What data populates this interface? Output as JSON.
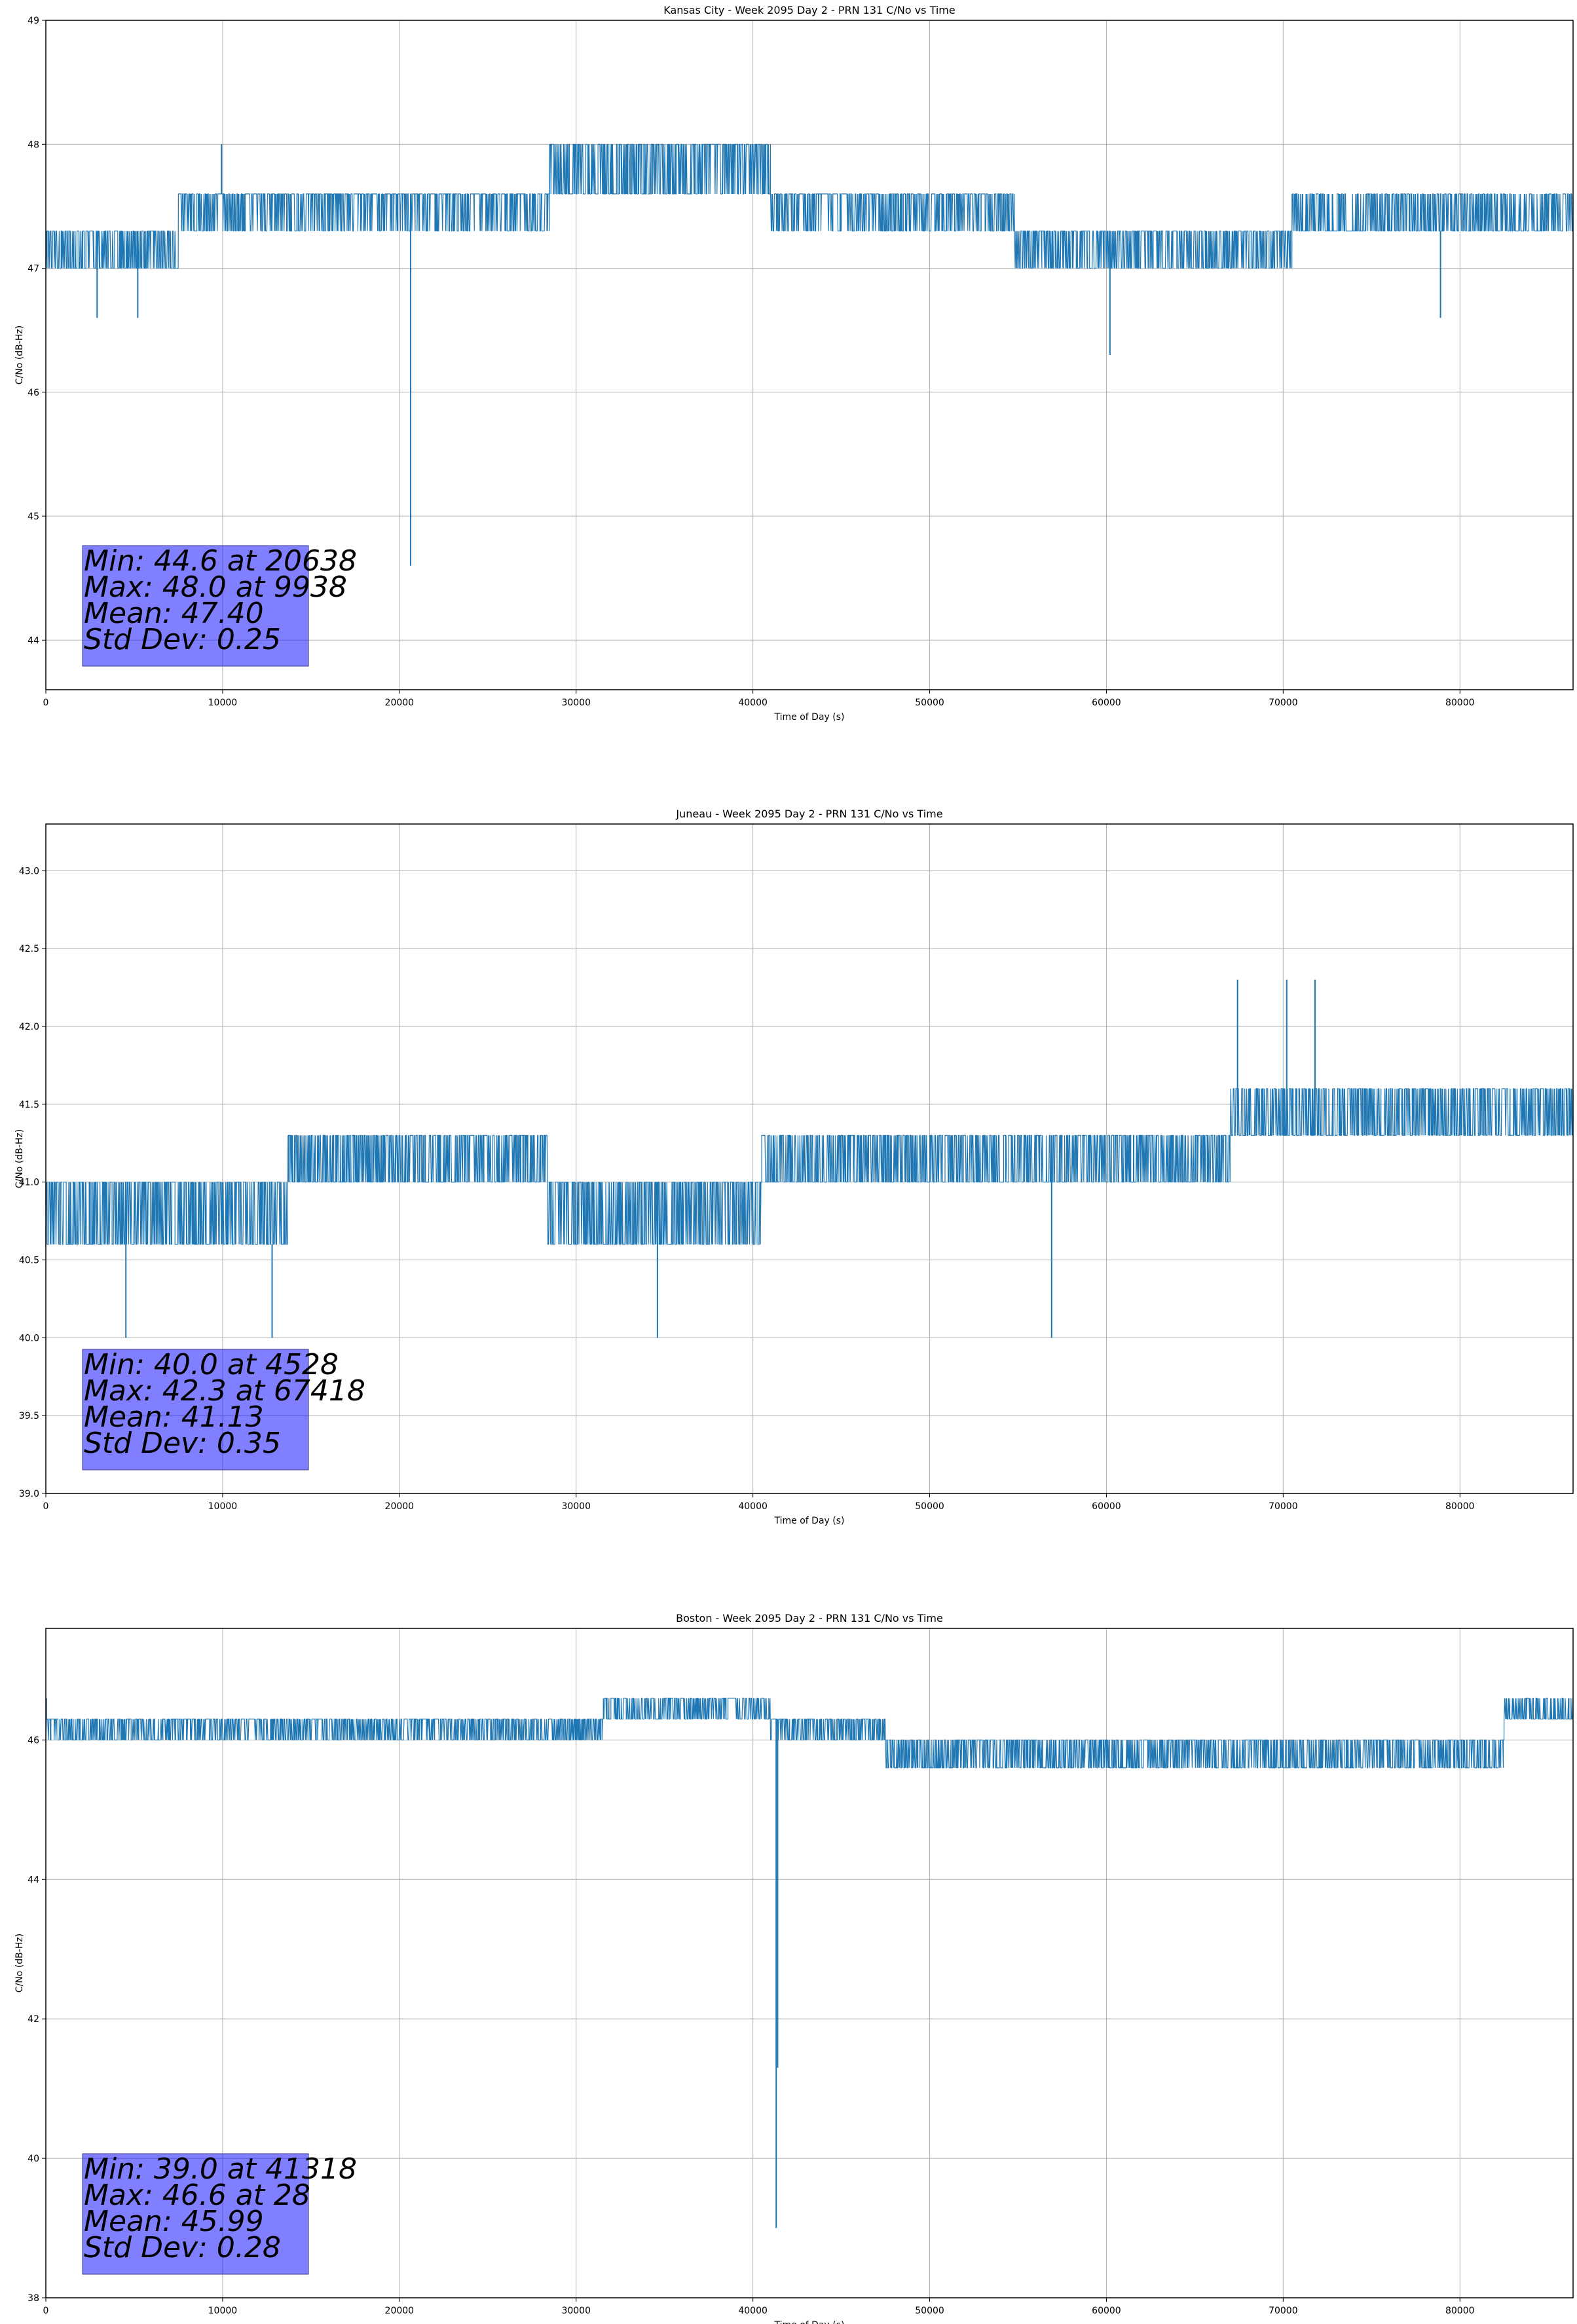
{
  "chart_data": [
    {
      "type": "line",
      "title": "Kansas City - Week 2095 Day 2 - PRN 131 C/No vs Time",
      "xlabel": "Time of Day (s)",
      "ylabel": "C/No (dB-Hz)",
      "xlim": [
        0,
        86400
      ],
      "ylim": [
        43.6,
        49.0
      ],
      "xticks": [
        0,
        10000,
        20000,
        30000,
        40000,
        50000,
        60000,
        70000,
        80000
      ],
      "yticks": [
        44,
        45,
        46,
        47,
        48,
        49
      ],
      "ytick_decimals": 0,
      "grid": true,
      "color": "#1f77b4",
      "stats": [
        "Min: 44.6 at 20638",
        "Max: 48.0 at 9938",
        "Mean: 47.40",
        "Std Dev: 0.25"
      ],
      "levels": [
        {
          "x": [
            0,
            7500
          ],
          "base": 47.3,
          "alt": 47.0,
          "rate": 0.5
        },
        {
          "x": [
            7500,
            28500
          ],
          "base": 47.6,
          "alt": 47.3,
          "rate": 0.3
        },
        {
          "x": [
            28500,
            41000
          ],
          "base": 47.6,
          "alt": 48.0,
          "rate": 0.55
        },
        {
          "x": [
            41000,
            54800
          ],
          "base": 47.6,
          "alt": 47.3,
          "rate": 0.35
        },
        {
          "x": [
            54800,
            70500
          ],
          "base": 47.3,
          "alt": 47.0,
          "rate": 0.4
        },
        {
          "x": [
            70500,
            86400
          ],
          "base": 47.3,
          "alt": 47.6,
          "rate": 0.4
        }
      ],
      "spikes": [
        [
          20638,
          44.6
        ],
        [
          60200,
          46.3
        ],
        [
          2900,
          46.6
        ],
        [
          5200,
          46.6
        ],
        [
          78900,
          46.6
        ],
        [
          9938,
          48.0
        ]
      ]
    },
    {
      "type": "line",
      "title": "Juneau - Week 2095 Day 2 - PRN 131 C/No vs Time",
      "xlabel": "Time of Day (s)",
      "ylabel": "C/No (dB-Hz)",
      "xlim": [
        0,
        86400
      ],
      "ylim": [
        39.0,
        43.3
      ],
      "xticks": [
        0,
        10000,
        20000,
        30000,
        40000,
        50000,
        60000,
        70000,
        80000
      ],
      "yticks": [
        39.0,
        39.5,
        40.0,
        40.5,
        41.0,
        41.5,
        42.0,
        42.5,
        43.0
      ],
      "ytick_decimals": 1,
      "grid": true,
      "color": "#1f77b4",
      "stats": [
        "Min: 40.0 at 4528",
        "Max: 42.3 at 67418",
        "Mean: 41.13",
        "Std Dev: 0.35"
      ],
      "levels": [
        {
          "x": [
            0,
            9600
          ],
          "base": 41.0,
          "alt": 40.6,
          "rate": 0.55
        },
        {
          "x": [
            9600,
            13700
          ],
          "base": 40.6,
          "alt": 41.0,
          "rate": 0.5
        },
        {
          "x": [
            13700,
            28400
          ],
          "base": 41.3,
          "alt": 41.0,
          "rate": 0.5
        },
        {
          "x": [
            28400,
            40500
          ],
          "base": 41.0,
          "alt": 40.6,
          "rate": 0.5
        },
        {
          "x": [
            40500,
            67000
          ],
          "base": 41.3,
          "alt": 41.0,
          "rate": 0.5
        },
        {
          "x": [
            67000,
            86400
          ],
          "base": 41.3,
          "alt": 41.6,
          "rate": 0.5
        }
      ],
      "spikes": [
        [
          4528,
          40.0
        ],
        [
          12800,
          40.0
        ],
        [
          34600,
          40.0
        ],
        [
          56900,
          40.0
        ],
        [
          67418,
          42.3
        ],
        [
          70200,
          42.3
        ],
        [
          71800,
          42.3
        ]
      ]
    },
    {
      "type": "line",
      "title": "Boston - Week 2095 Day 2 - PRN 131 C/No vs Time",
      "xlabel": "Time of Day (s)",
      "ylabel": "C/No (dB-Hz)",
      "xlim": [
        0,
        86400
      ],
      "ylim": [
        38.0,
        47.6
      ],
      "xticks": [
        0,
        10000,
        20000,
        30000,
        40000,
        50000,
        60000,
        70000,
        80000
      ],
      "yticks": [
        38,
        40,
        42,
        44,
        46
      ],
      "ytick_decimals": 0,
      "grid": true,
      "color": "#1f77b4",
      "stats": [
        "Min: 39.0 at 41318",
        "Max: 46.6 at 28",
        "Mean: 45.99",
        "Std Dev: 0.28"
      ],
      "levels": [
        {
          "x": [
            0,
            31500
          ],
          "base": 46.3,
          "alt": 46.0,
          "rate": 0.45
        },
        {
          "x": [
            31500,
            41000
          ],
          "base": 46.3,
          "alt": 46.6,
          "rate": 0.5
        },
        {
          "x": [
            41000,
            47500
          ],
          "base": 46.3,
          "alt": 46.0,
          "rate": 0.4
        },
        {
          "x": [
            47500,
            82500
          ],
          "base": 46.0,
          "alt": 45.6,
          "rate": 0.5
        },
        {
          "x": [
            82500,
            86400
          ],
          "base": 46.3,
          "alt": 46.6,
          "rate": 0.45
        }
      ],
      "spikes": [
        [
          41318,
          39.0
        ],
        [
          41400,
          41.3
        ],
        [
          28,
          46.6
        ]
      ]
    }
  ]
}
